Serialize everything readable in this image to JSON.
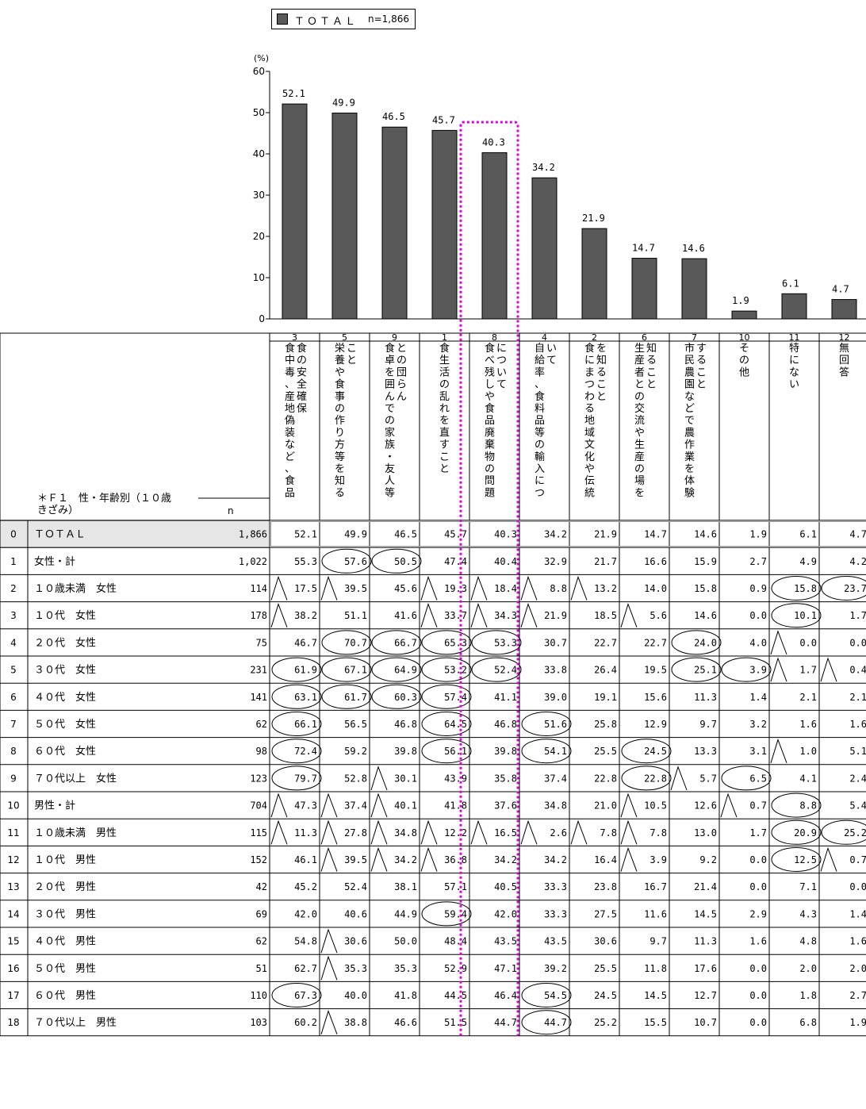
{
  "legend": {
    "label": "ＴＯＴＡＬ",
    "n": "n=1,866"
  },
  "chart_data": {
    "type": "bar",
    "ylabel": "(%)",
    "ylim": [
      0,
      60
    ],
    "yticks": [
      "0",
      "10",
      "20",
      "30",
      "40",
      "50",
      "60"
    ],
    "grid": false,
    "legend_position": "top",
    "bar_color": "#595959",
    "highlight_color": "#e000e0",
    "highlight_column": "8",
    "codes": [
      "3",
      "5",
      "9",
      "1",
      "8",
      "4",
      "2",
      "6",
      "7",
      "10",
      "11",
      "12"
    ],
    "categories": [
      "食の安全確保（食中毒、産地偽装など、食品",
      "栄養や食事の作り方等を知ること",
      "食卓を囲んでの家族・友人等との団らん",
      "食生活の乱れを直すこと",
      "食べ残しや食品廃棄物の問題について",
      "自給率、食料品等の輸入について",
      "食にまつわる地域文化や伝統を知ること",
      "生産者との交流や生産の場を知ること",
      "市民農園などで農作業を体験すること",
      "その他",
      "特にない",
      "無回答"
    ],
    "series": [
      {
        "name": "ＴＯＴＡＬ",
        "values": [
          52.1,
          49.9,
          46.5,
          45.7,
          40.3,
          34.2,
          21.9,
          14.7,
          14.6,
          1.9,
          6.1,
          4.7
        ]
      }
    ],
    "data_labels": [
      "52.1",
      "49.9",
      "46.5",
      "45.7",
      "40.3",
      "34.2",
      "21.9",
      "14.7",
      "14.6",
      "1.9",
      "6.1",
      "4.7"
    ]
  },
  "table": {
    "header_label": "＊Ｆ１　性・年齢別（１０歳きざみ）",
    "header_label_line1": "＊Ｆ１　性・年齢別（１０歳",
    "header_label_line2": "きざみ）",
    "n_label": "n",
    "col_labels": [
      [
        "食の安全確保",
        "食中毒、産地偽装など、食品"
      ],
      [
        "こと",
        "栄養や食事の作り方等を知る"
      ],
      [
        "との団らん",
        "食卓を囲んでの家族・友人等"
      ],
      [
        "",
        "食生活の乱れを直すこと"
      ],
      [
        "について",
        "食べ残しや食品廃棄物の問題"
      ],
      [
        "いて",
        "自給率、食料品等の輸入につ"
      ],
      [
        "を知ること",
        "食にまつわる地域文化や伝統"
      ],
      [
        "知ること",
        "生産者との交流や生産の場を"
      ],
      [
        "すること",
        "市民農園などで農作業を体験"
      ],
      [
        "",
        "その他"
      ],
      [
        "",
        "特にない"
      ],
      [
        "",
        "無回答"
      ]
    ],
    "rows": [
      {
        "idx": "0",
        "label": "ＴＯＴＡＬ",
        "n": "1,866",
        "values": [
          "52.1",
          "49.9",
          "46.5",
          "45.7",
          "40.3",
          "34.2",
          "21.9",
          "14.7",
          "14.6",
          "1.9",
          "6.1",
          "4.7"
        ],
        "marks": [
          "",
          "",
          "",
          "",
          "",
          "",
          "",
          "",
          "",
          "",
          "",
          ""
        ]
      },
      {
        "idx": "1",
        "label": "女性・計",
        "n": "1,022",
        "values": [
          "55.3",
          "57.6",
          "50.5",
          "47.4",
          "40.4",
          "32.9",
          "21.7",
          "16.6",
          "15.9",
          "2.7",
          "4.9",
          "4.2"
        ],
        "marks": [
          "",
          "o",
          "o",
          "",
          "",
          "",
          "",
          "",
          "",
          "",
          "",
          ""
        ]
      },
      {
        "idx": "2",
        "label": "１０歳未満　女性",
        "n": "114",
        "values": [
          "17.5",
          "39.5",
          "45.6",
          "19.3",
          "18.4",
          "8.8",
          "13.2",
          "14.0",
          "15.8",
          "0.9",
          "15.8",
          "23.7"
        ],
        "marks": [
          "t",
          "t",
          "",
          "t",
          "t",
          "t",
          "t",
          "",
          "",
          "",
          "o",
          "o"
        ]
      },
      {
        "idx": "3",
        "label": "１０代　女性",
        "n": "178",
        "values": [
          "38.2",
          "51.1",
          "41.6",
          "33.7",
          "34.3",
          "21.9",
          "18.5",
          "5.6",
          "14.6",
          "0.0",
          "10.1",
          "1.7"
        ],
        "marks": [
          "t",
          "",
          "",
          "t",
          "t",
          "t",
          "",
          "t",
          "",
          "",
          "o",
          ""
        ]
      },
      {
        "idx": "4",
        "label": "２０代　女性",
        "n": "75",
        "values": [
          "46.7",
          "70.7",
          "66.7",
          "65.3",
          "53.3",
          "30.7",
          "22.7",
          "22.7",
          "24.0",
          "4.0",
          "0.0",
          "0.0"
        ],
        "marks": [
          "",
          "o",
          "o",
          "o",
          "o",
          "",
          "",
          "",
          "o",
          "",
          "t",
          ""
        ]
      },
      {
        "idx": "5",
        "label": "３０代　女性",
        "n": "231",
        "values": [
          "61.9",
          "67.1",
          "64.9",
          "53.2",
          "52.4",
          "33.8",
          "26.4",
          "19.5",
          "25.1",
          "3.9",
          "1.7",
          "0.4"
        ],
        "marks": [
          "o",
          "o",
          "o",
          "o",
          "o",
          "",
          "",
          "",
          "o",
          "o",
          "t",
          "t"
        ]
      },
      {
        "idx": "6",
        "label": "４０代　女性",
        "n": "141",
        "values": [
          "63.1",
          "61.7",
          "60.3",
          "57.4",
          "41.1",
          "39.0",
          "19.1",
          "15.6",
          "11.3",
          "1.4",
          "2.1",
          "2.1"
        ],
        "marks": [
          "o",
          "o",
          "o",
          "o",
          "",
          "",
          "",
          "",
          "",
          "",
          "",
          ""
        ]
      },
      {
        "idx": "7",
        "label": "５０代　女性",
        "n": "62",
        "values": [
          "66.1",
          "56.5",
          "46.8",
          "64.5",
          "46.8",
          "51.6",
          "25.8",
          "12.9",
          "9.7",
          "3.2",
          "1.6",
          "1.6"
        ],
        "marks": [
          "o",
          "",
          "",
          "o",
          "",
          "o",
          "",
          "",
          "",
          "",
          "",
          ""
        ]
      },
      {
        "idx": "8",
        "label": "６０代　女性",
        "n": "98",
        "values": [
          "72.4",
          "59.2",
          "39.8",
          "56.1",
          "39.8",
          "54.1",
          "25.5",
          "24.5",
          "13.3",
          "3.1",
          "1.0",
          "5.1"
        ],
        "marks": [
          "o",
          "",
          "",
          "o",
          "",
          "o",
          "",
          "o",
          "",
          "",
          "t",
          ""
        ]
      },
      {
        "idx": "9",
        "label": "７０代以上　女性",
        "n": "123",
        "values": [
          "79.7",
          "52.8",
          "30.1",
          "43.9",
          "35.8",
          "37.4",
          "22.8",
          "22.8",
          "5.7",
          "6.5",
          "4.1",
          "2.4"
        ],
        "marks": [
          "o",
          "",
          "t",
          "",
          "",
          "",
          "",
          "o",
          "t",
          "o",
          "",
          ""
        ]
      },
      {
        "idx": "10",
        "label": "男性・計",
        "n": "704",
        "values": [
          "47.3",
          "37.4",
          "40.1",
          "41.8",
          "37.6",
          "34.8",
          "21.0",
          "10.5",
          "12.6",
          "0.7",
          "8.8",
          "5.4"
        ],
        "marks": [
          "t",
          "t",
          "t",
          "",
          "",
          "",
          "",
          "t",
          "",
          "t",
          "o",
          ""
        ]
      },
      {
        "idx": "11",
        "label": "１０歳未満　男性",
        "n": "115",
        "values": [
          "11.3",
          "27.8",
          "34.8",
          "12.2",
          "16.5",
          "2.6",
          "7.8",
          "7.8",
          "13.0",
          "1.7",
          "20.9",
          "25.2"
        ],
        "marks": [
          "t",
          "t",
          "t",
          "t",
          "t",
          "t",
          "t",
          "t",
          "",
          "",
          "o",
          "o"
        ]
      },
      {
        "idx": "12",
        "label": "１０代　男性",
        "n": "152",
        "values": [
          "46.1",
          "39.5",
          "34.2",
          "36.8",
          "34.2",
          "34.2",
          "16.4",
          "3.9",
          "9.2",
          "0.0",
          "12.5",
          "0.7"
        ],
        "marks": [
          "",
          "t",
          "t",
          "t",
          "",
          "",
          "",
          "t",
          "",
          "",
          "o",
          "t"
        ]
      },
      {
        "idx": "13",
        "label": "２０代　男性",
        "n": "42",
        "values": [
          "45.2",
          "52.4",
          "38.1",
          "57.1",
          "40.5",
          "33.3",
          "23.8",
          "16.7",
          "21.4",
          "0.0",
          "7.1",
          "0.0"
        ],
        "marks": [
          "",
          "",
          "",
          "",
          "",
          "",
          "",
          "",
          "",
          "",
          "",
          ""
        ]
      },
      {
        "idx": "14",
        "label": "３０代　男性",
        "n": "69",
        "values": [
          "42.0",
          "40.6",
          "44.9",
          "59.4",
          "42.0",
          "33.3",
          "27.5",
          "11.6",
          "14.5",
          "2.9",
          "4.3",
          "1.4"
        ],
        "marks": [
          "",
          "",
          "",
          "o",
          "",
          "",
          "",
          "",
          "",
          "",
          "",
          ""
        ]
      },
      {
        "idx": "15",
        "label": "４０代　男性",
        "n": "62",
        "values": [
          "54.8",
          "30.6",
          "50.0",
          "48.4",
          "43.5",
          "43.5",
          "30.6",
          "9.7",
          "11.3",
          "1.6",
          "4.8",
          "1.6"
        ],
        "marks": [
          "",
          "t",
          "",
          "",
          "",
          "",
          "",
          "",
          "",
          "",
          "",
          ""
        ]
      },
      {
        "idx": "16",
        "label": "５０代　男性",
        "n": "51",
        "values": [
          "62.7",
          "35.3",
          "35.3",
          "52.9",
          "47.1",
          "39.2",
          "25.5",
          "11.8",
          "17.6",
          "0.0",
          "2.0",
          "2.0"
        ],
        "marks": [
          "",
          "t",
          "",
          "",
          "",
          "",
          "",
          "",
          "",
          "",
          "",
          ""
        ]
      },
      {
        "idx": "17",
        "label": "６０代　男性",
        "n": "110",
        "values": [
          "67.3",
          "40.0",
          "41.8",
          "44.5",
          "46.4",
          "54.5",
          "24.5",
          "14.5",
          "12.7",
          "0.0",
          "1.8",
          "2.7"
        ],
        "marks": [
          "o",
          "",
          "",
          "",
          "",
          "o",
          "",
          "",
          "",
          "",
          "",
          ""
        ]
      },
      {
        "idx": "18",
        "label": "７０代以上　男性",
        "n": "103",
        "values": [
          "60.2",
          "38.8",
          "46.6",
          "51.5",
          "44.7",
          "44.7",
          "25.2",
          "15.5",
          "10.7",
          "0.0",
          "6.8",
          "1.9"
        ],
        "marks": [
          "",
          "t",
          "",
          "",
          "",
          "o",
          "",
          "",
          "",
          "",
          "",
          ""
        ]
      }
    ]
  }
}
